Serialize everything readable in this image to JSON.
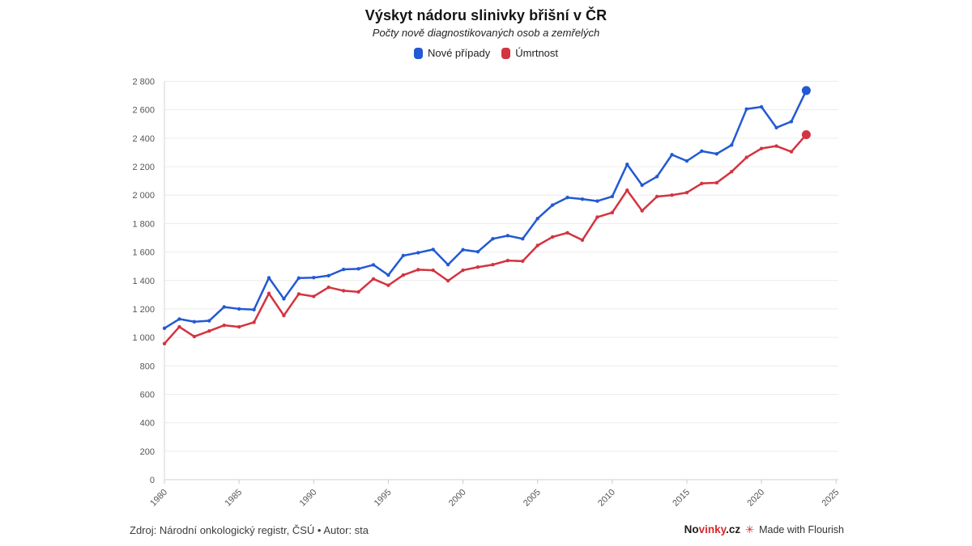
{
  "title": "Výskyt nádoru slinivky břišní v ČR",
  "subtitle": "Počty nově diagnostikovaných osob a zemřelých",
  "legend": [
    {
      "label": "Nové případy",
      "color": "#2259d4"
    },
    {
      "label": "Úmrtnost",
      "color": "#d43340"
    }
  ],
  "footer": {
    "source": "Zdroj: Národní onkologický registr, ČSÚ • Autor: sta",
    "brand_no": "No",
    "brand_accent": "vinky",
    "brand_cz": ".cz",
    "flourish_icon": "✳",
    "made_with": "Made with Flourish"
  },
  "chart_data": {
    "type": "line",
    "title": "Výskyt nádoru slinivky břišní v ČR",
    "subtitle": "Počty nově diagnostikovaných osob a zemřelých",
    "xlabel": "",
    "ylabel": "",
    "ylim": [
      0,
      2800
    ],
    "ytick_step": 200,
    "xlim": [
      1980,
      2025.15
    ],
    "xticks": [
      1980,
      1985,
      1990,
      1995,
      2000,
      2005,
      2010,
      2015,
      2020,
      2025
    ],
    "grid": true,
    "legend_position": "top",
    "x": [
      1980,
      1981,
      1982,
      1983,
      1984,
      1985,
      1986,
      1987,
      1988,
      1989,
      1990,
      1991,
      1992,
      1993,
      1994,
      1995,
      1996,
      1997,
      1998,
      1999,
      2000,
      2001,
      2002,
      2003,
      2004,
      2005,
      2006,
      2007,
      2008,
      2009,
      2010,
      2011,
      2012,
      2013,
      2014,
      2015,
      2016,
      2017,
      2018,
      2019,
      2020,
      2021,
      2022,
      2023
    ],
    "series": [
      {
        "name": "Nové případy",
        "color": "#2259d4",
        "values": [
          1064,
          1129,
          1110,
          1117,
          1214,
          1200,
          1195,
          1419,
          1271,
          1417,
          1420,
          1434,
          1478,
          1482,
          1510,
          1438,
          1575,
          1595,
          1618,
          1511,
          1616,
          1602,
          1693,
          1715,
          1693,
          1835,
          1930,
          1983,
          1972,
          1958,
          1990,
          2216,
          2070,
          2130,
          2284,
          2240,
          2309,
          2290,
          2352,
          2605,
          2620,
          2474,
          2517,
          2735
        ]
      },
      {
        "name": "Úmrtnost",
        "color": "#d43340",
        "values": [
          956,
          1074,
          1006,
          1045,
          1085,
          1074,
          1106,
          1309,
          1154,
          1305,
          1288,
          1352,
          1328,
          1320,
          1411,
          1366,
          1438,
          1476,
          1472,
          1398,
          1472,
          1494,
          1511,
          1540,
          1536,
          1646,
          1706,
          1735,
          1684,
          1845,
          1877,
          2034,
          1890,
          1990,
          2000,
          2018,
          2082,
          2087,
          2165,
          2265,
          2328,
          2345,
          2305,
          2425
        ]
      }
    ]
  }
}
